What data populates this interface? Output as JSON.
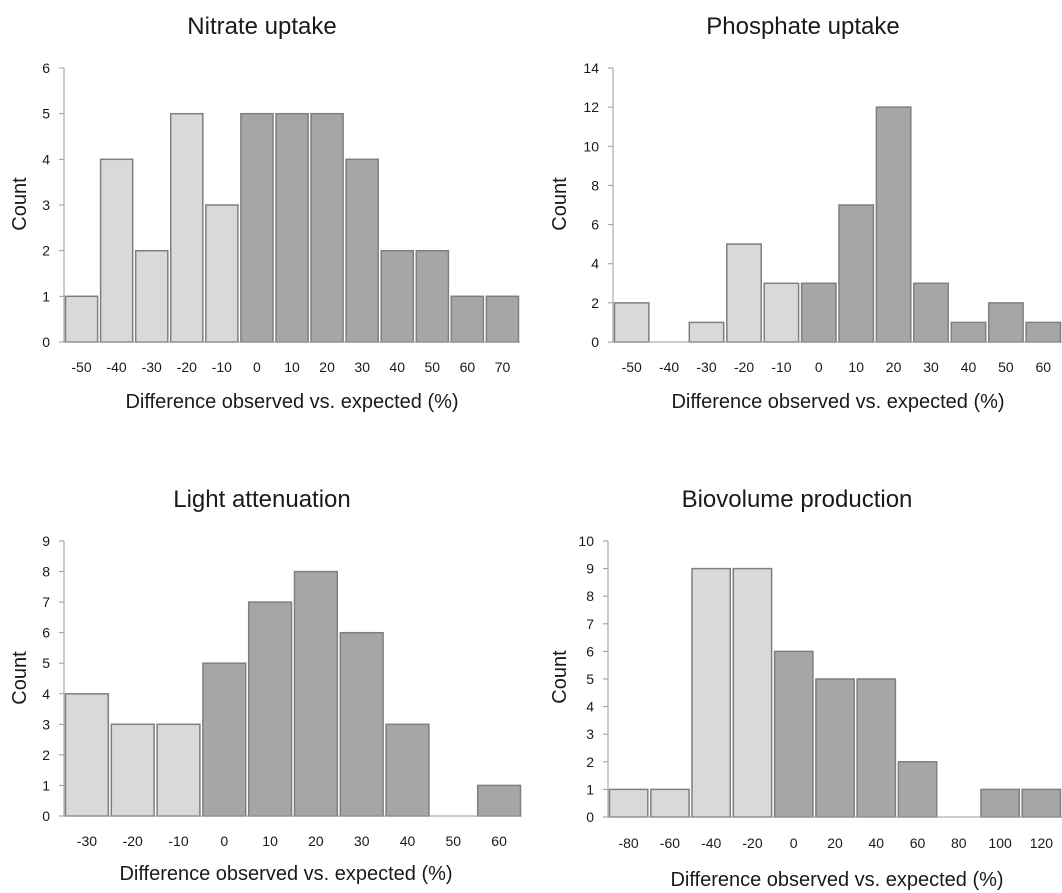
{
  "chart_data": [
    {
      "type": "bar",
      "title": "Nitrate uptake",
      "xlabel": "Difference observed vs. expected (%)",
      "ylabel": "Count",
      "categories": [
        "-50",
        "-40",
        "-30",
        "-20",
        "-10",
        "0",
        "10",
        "20",
        "30",
        "40",
        "50",
        "60",
        "70"
      ],
      "values": [
        1,
        4,
        2,
        5,
        3,
        5,
        5,
        5,
        4,
        2,
        2,
        1,
        1
      ],
      "ylim": [
        0,
        6
      ],
      "yticks": [
        "0",
        "1",
        "2",
        "3",
        "4",
        "5",
        "6"
      ],
      "colors": {
        "negative": "#d9d9d9",
        "positive": "#a6a6a6",
        "edge": "#7f7f7f"
      }
    },
    {
      "type": "bar",
      "title": "Phosphate uptake",
      "xlabel": "Difference observed vs. expected (%)",
      "ylabel": "Count",
      "categories": [
        "-50",
        "-40",
        "-30",
        "-20",
        "-10",
        "0",
        "10",
        "20",
        "30",
        "40",
        "50",
        "60"
      ],
      "values": [
        2,
        0,
        1,
        5,
        3,
        3,
        7,
        12,
        3,
        1,
        2,
        1
      ],
      "ylim": [
        0,
        14
      ],
      "yticks": [
        "0",
        "2",
        "4",
        "6",
        "8",
        "10",
        "12",
        "14"
      ],
      "colors": {
        "negative": "#d9d9d9",
        "positive": "#a6a6a6",
        "edge": "#7f7f7f"
      }
    },
    {
      "type": "bar",
      "title": "Light attenuation",
      "xlabel": "Difference observed vs. expected (%)",
      "ylabel": "Count",
      "categories": [
        "-30",
        "-20",
        "-10",
        "0",
        "10",
        "20",
        "30",
        "40",
        "50",
        "60"
      ],
      "values": [
        4,
        3,
        3,
        5,
        7,
        8,
        6,
        3,
        0,
        1
      ],
      "ylim": [
        0,
        9
      ],
      "yticks": [
        "0",
        "1",
        "2",
        "3",
        "4",
        "5",
        "6",
        "7",
        "8",
        "9"
      ],
      "colors": {
        "negative": "#d9d9d9",
        "positive": "#a6a6a6",
        "edge": "#7f7f7f"
      }
    },
    {
      "type": "bar",
      "title": "Biovolume production",
      "xlabel": "Difference observed vs. expected (%)",
      "ylabel": "Count",
      "categories": [
        "-80",
        "-60",
        "-40",
        "-20",
        "0",
        "20",
        "40",
        "60",
        "80",
        "100",
        "120"
      ],
      "values": [
        1,
        1,
        9,
        9,
        6,
        5,
        5,
        2,
        0,
        1,
        1
      ],
      "ylim": [
        0,
        10
      ],
      "yticks": [
        "0",
        "1",
        "2",
        "3",
        "4",
        "5",
        "6",
        "7",
        "8",
        "9",
        "10"
      ],
      "colors": {
        "negative": "#d9d9d9",
        "positive": "#a6a6a6",
        "edge": "#7f7f7f"
      }
    }
  ]
}
